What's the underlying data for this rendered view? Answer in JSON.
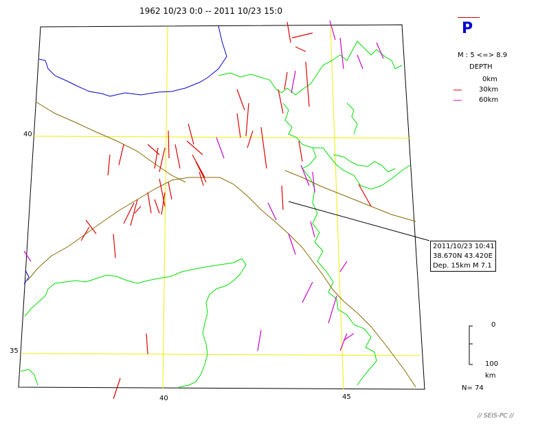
{
  "title": "1962 10/23 0:0 -- 2011 10/23 15:0",
  "phase_label": "P",
  "magnitude_range": "M : 5 <=> 8.9",
  "depth_legend": {
    "title": "DEPTH",
    "items": [
      {
        "label": "0km",
        "color": ""
      },
      {
        "label": "30km",
        "color": "#dd0000"
      },
      {
        "label": "60km",
        "color": "#cc00cc"
      }
    ]
  },
  "grid_labels": {
    "lat_40": "40",
    "lat_35": "35",
    "lon_40": "40",
    "lon_45": "45"
  },
  "event": {
    "datetime": "2011/10/23 10:41",
    "coords": "38.670N  43.420E",
    "depth_mag": "Dep. 15km   M 7.1"
  },
  "depth_scale": {
    "top": "0",
    "bottom": "100",
    "unit": "km"
  },
  "count": "N= 74",
  "credit": "// SEIS-PC //",
  "colors": {
    "coast": "#0000cc",
    "border": "#00dd00",
    "grid": "#eeee00",
    "fault": "#886600",
    "shallow": "#dd0000",
    "deep": "#cc00cc"
  }
}
